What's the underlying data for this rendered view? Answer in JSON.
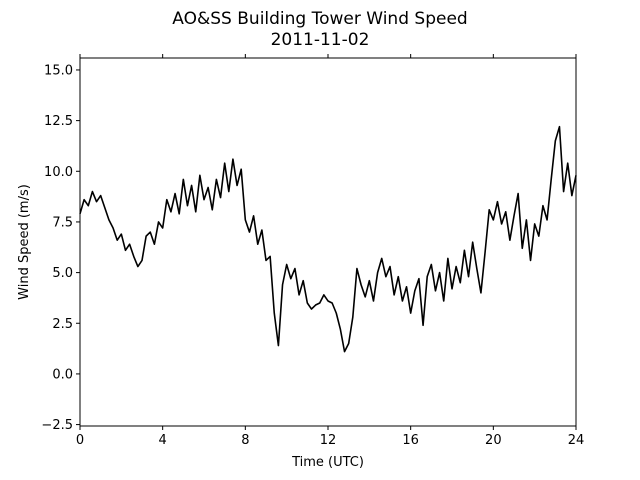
{
  "chart_data": {
    "type": "line",
    "title": "AO&SS Building Tower Wind Speed",
    "subtitle": "2011-11-02",
    "xlabel": "Time (UTC)",
    "ylabel": "Wind Speed (m/s)",
    "color": "#000000",
    "x": [
      0,
      0.2,
      0.4,
      0.6,
      0.8,
      1,
      1.2,
      1.4,
      1.6,
      1.8,
      2,
      2.2,
      2.4,
      2.6,
      2.8,
      3,
      3.2,
      3.4,
      3.6,
      3.8,
      4,
      4.2,
      4.4,
      4.6,
      4.8,
      5,
      5.2,
      5.4,
      5.6,
      5.8,
      6,
      6.2,
      6.4,
      6.6,
      6.8,
      7,
      7.2,
      7.4,
      7.6,
      7.8,
      8,
      8.2,
      8.4,
      8.6,
      8.8,
      9,
      9.2,
      9.4,
      9.6,
      9.8,
      10,
      10.2,
      10.4,
      10.6,
      10.8,
      11,
      11.2,
      11.4,
      11.6,
      11.8,
      12,
      12.2,
      12.4,
      12.6,
      12.8,
      13,
      13.2,
      13.4,
      13.6,
      13.8,
      14,
      14.2,
      14.4,
      14.6,
      14.8,
      15,
      15.2,
      15.4,
      15.6,
      15.8,
      16,
      16.2,
      16.4,
      16.6,
      16.8,
      17,
      17.2,
      17.4,
      17.6,
      17.8,
      18,
      18.2,
      18.4,
      18.6,
      18.8,
      19,
      19.2,
      19.4,
      19.6,
      19.8,
      20,
      20.2,
      20.4,
      20.6,
      20.8,
      21,
      21.2,
      21.4,
      21.6,
      21.8,
      22,
      22.2,
      22.4,
      22.6,
      22.8,
      23,
      23.2,
      23.4,
      23.6,
      23.8,
      24
    ],
    "values": [
      7.9,
      8.6,
      8.3,
      9.0,
      8.5,
      8.8,
      8.2,
      7.6,
      7.2,
      6.6,
      6.9,
      6.1,
      6.4,
      5.8,
      5.3,
      5.6,
      6.8,
      7.0,
      6.4,
      7.5,
      7.2,
      8.6,
      8.0,
      8.9,
      7.9,
      9.6,
      8.3,
      9.3,
      8.0,
      9.8,
      8.6,
      9.2,
      8.1,
      9.6,
      8.7,
      10.4,
      9.0,
      10.6,
      9.3,
      10.1,
      7.6,
      7.0,
      7.8,
      6.4,
      7.1,
      5.6,
      5.8,
      3.0,
      1.4,
      4.4,
      5.4,
      4.7,
      5.2,
      3.9,
      4.6,
      3.5,
      3.2,
      3.4,
      3.5,
      3.9,
      3.6,
      3.5,
      3.0,
      2.2,
      1.1,
      1.5,
      2.8,
      5.2,
      4.4,
      3.8,
      4.6,
      3.6,
      5.0,
      5.7,
      4.8,
      5.3,
      3.9,
      4.8,
      3.6,
      4.3,
      3.0,
      4.1,
      4.7,
      2.4,
      4.8,
      5.4,
      4.1,
      5.0,
      3.6,
      5.7,
      4.2,
      5.3,
      4.5,
      6.1,
      4.8,
      6.5,
      5.2,
      4.0,
      6.0,
      8.1,
      7.6,
      8.5,
      7.4,
      8.0,
      6.6,
      7.8,
      8.9,
      6.2,
      7.6,
      5.6,
      7.4,
      6.8,
      8.3,
      7.6,
      9.6,
      11.5,
      12.2,
      9.0,
      10.4,
      8.8,
      9.8
    ],
    "xlim": [
      0,
      24
    ],
    "xticks": [
      0,
      4,
      8,
      12,
      16,
      20,
      24
    ],
    "ylim": [
      -2.57,
      15.59
    ],
    "yticks": [
      {
        "value": -2.5,
        "label": "−2.5"
      },
      {
        "value": 0,
        "label": "0.0"
      },
      2.5,
      {
        "value": 5,
        "label": "5.0"
      },
      7.5,
      {
        "value": 10,
        "label": "10.0"
      },
      12.5,
      {
        "value": 15,
        "label": "15.0"
      }
    ],
    "grid": false
  }
}
